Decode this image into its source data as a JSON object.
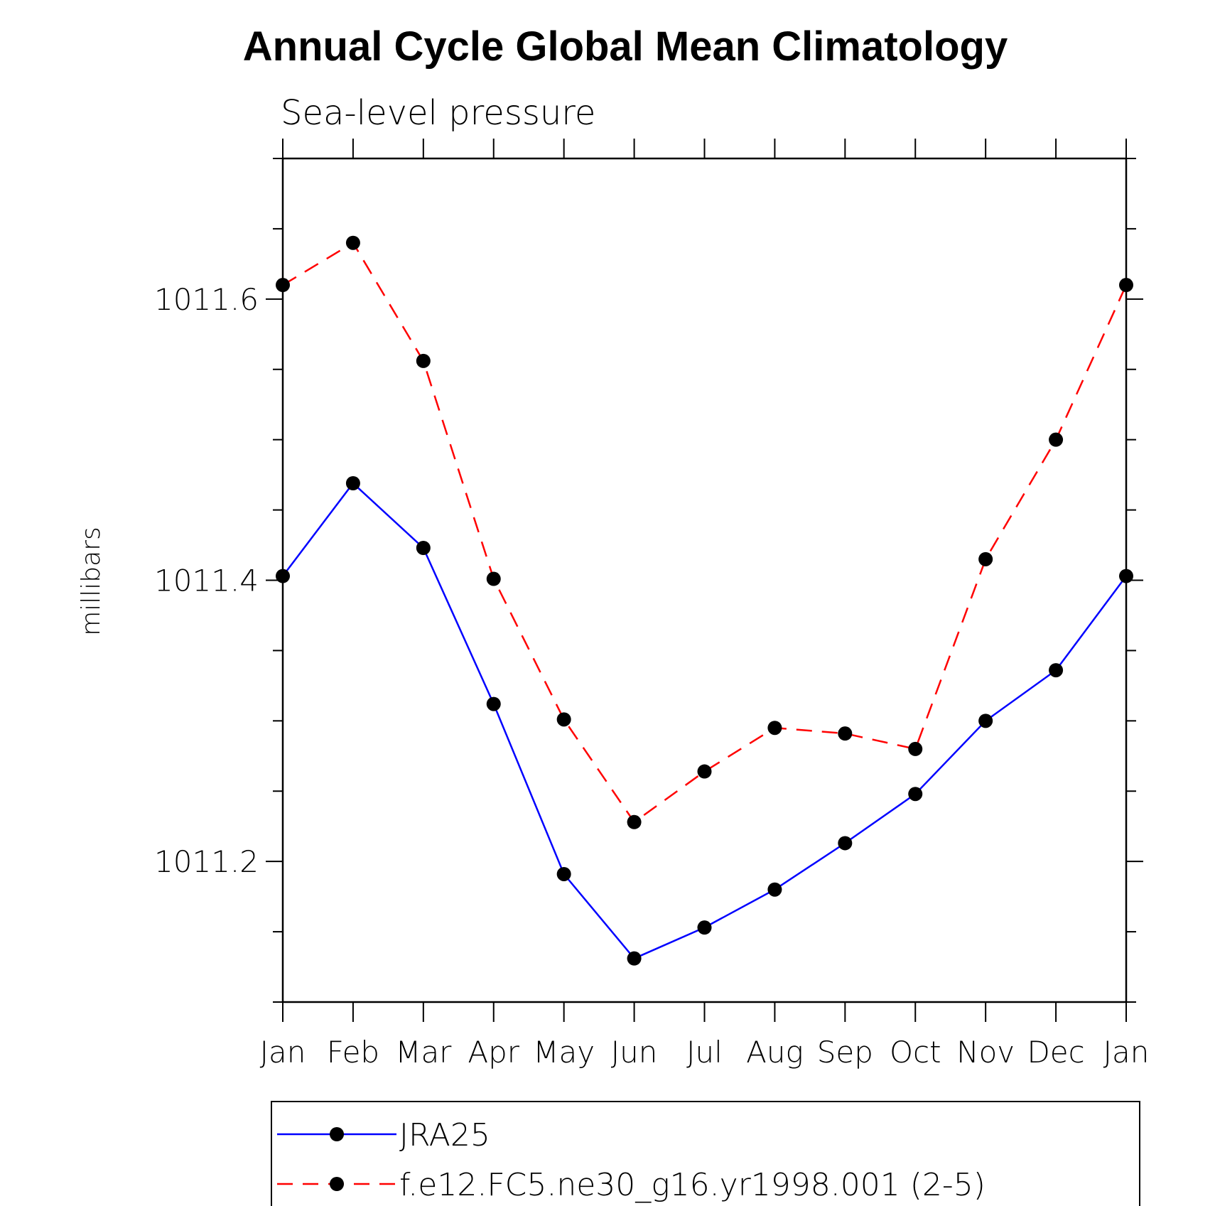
{
  "chart_data": {
    "type": "line",
    "title": "Annual Cycle Global Mean Climatology",
    "subtitle": "Sea-level pressure",
    "xlabel": "",
    "ylabel": "millibars",
    "categories": [
      "Jan",
      "Feb",
      "Mar",
      "Apr",
      "May",
      "Jun",
      "Jul",
      "Aug",
      "Sep",
      "Oct",
      "Nov",
      "Dec",
      "Jan"
    ],
    "ylim": [
      1011.1,
      1011.7
    ],
    "yticks": [
      1011.2,
      1011.4,
      1011.6
    ],
    "ytick_labels": [
      "1011.2",
      "1011.4",
      "1011.6"
    ],
    "minor_ytick_step": 0.05,
    "grid": false,
    "legend_position": "bottom",
    "series": [
      {
        "name": "JRA25",
        "color": "#0000ff",
        "dash": "solid",
        "marker": "filled-circle",
        "values": [
          1011.403,
          1011.469,
          1011.423,
          1011.312,
          1011.191,
          1011.131,
          1011.153,
          1011.18,
          1011.213,
          1011.248,
          1011.3,
          1011.336,
          1011.403
        ]
      },
      {
        "name": "f.e12.FC5.ne30_g16.yr1998.001 (2-5)",
        "color": "#ff0000",
        "dash": "dashed",
        "marker": "filled-circle",
        "values": [
          1011.61,
          1011.64,
          1011.556,
          1011.401,
          1011.301,
          1011.228,
          1011.264,
          1011.295,
          1011.291,
          1011.28,
          1011.415,
          1011.5,
          1011.61
        ]
      }
    ]
  }
}
